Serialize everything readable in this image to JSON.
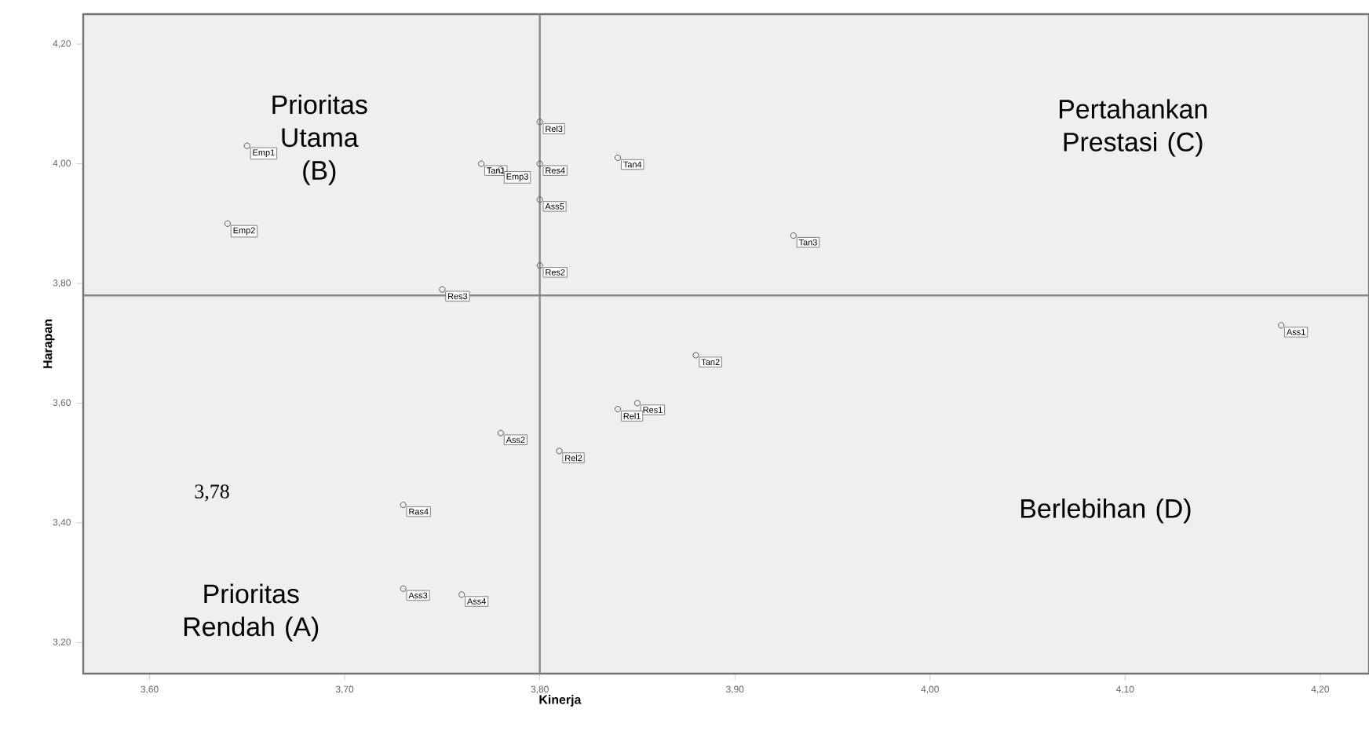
{
  "chart_data": {
    "type": "scatter",
    "xlabel": "Kinerja",
    "ylabel": "Harapan",
    "color": "#555555",
    "marker": "circle",
    "x": [
      3.8,
      3.65,
      3.77,
      3.78,
      3.8,
      3.8,
      3.84,
      3.64,
      3.8,
      3.75,
      3.93,
      4.18,
      3.88,
      3.85,
      3.84,
      3.78,
      3.81,
      3.73,
      3.73,
      3.76
    ],
    "values": [
      4.07,
      4.03,
      4.0,
      3.99,
      4.0,
      3.94,
      4.01,
      3.9,
      3.83,
      3.79,
      3.88,
      3.73,
      3.68,
      3.6,
      3.59,
      3.55,
      3.52,
      3.43,
      3.29,
      3.28
    ],
    "xlim": [
      3.566,
      4.225
    ],
    "ylim": [
      3.148,
      4.25
    ],
    "xticks": [
      {
        "value": 3.6,
        "label": "3,60"
      },
      {
        "value": 3.7,
        "label": "3,70"
      },
      {
        "value": 3.8,
        "label": "3,80"
      },
      {
        "value": 3.9,
        "label": "3,90"
      },
      {
        "value": 4.0,
        "label": "4,00"
      },
      {
        "value": 4.1,
        "label": "4,10"
      },
      {
        "value": 4.2,
        "label": "4,20"
      }
    ],
    "yticks": [
      {
        "value": 3.2,
        "label": "3,20"
      },
      {
        "value": 3.4,
        "label": "3,40"
      },
      {
        "value": 3.6,
        "label": "3,60"
      },
      {
        "value": 3.8,
        "label": "3,80"
      },
      {
        "value": 4.0,
        "label": "4,00"
      },
      {
        "value": 4.2,
        "label": "4,20"
      }
    ],
    "ref_lines": [
      {
        "axis": "x",
        "value": 3.8,
        "color": "#888888"
      },
      {
        "axis": "y",
        "value": 3.78,
        "color": "#888888"
      }
    ],
    "annotations": [
      {
        "text": "Rel3",
        "x": 3.8,
        "y": 4.07
      },
      {
        "text": "Emp1",
        "x": 3.65,
        "y": 4.03
      },
      {
        "text": "Tan1",
        "x": 3.77,
        "y": 4.0
      },
      {
        "text": "Emp3",
        "x": 3.78,
        "y": 3.99
      },
      {
        "text": "Res4",
        "x": 3.8,
        "y": 4.0
      },
      {
        "text": "Ass5",
        "x": 3.8,
        "y": 3.94
      },
      {
        "text": "Tan4",
        "x": 3.84,
        "y": 4.01
      },
      {
        "text": "Emp2",
        "x": 3.64,
        "y": 3.9
      },
      {
        "text": "Res2",
        "x": 3.8,
        "y": 3.83
      },
      {
        "text": "Res3",
        "x": 3.75,
        "y": 3.79
      },
      {
        "text": "Tan3",
        "x": 3.93,
        "y": 3.88
      },
      {
        "text": "Ass1",
        "x": 4.18,
        "y": 3.73
      },
      {
        "text": "Tan2",
        "x": 3.88,
        "y": 3.68
      },
      {
        "text": "Res1",
        "x": 3.85,
        "y": 3.6
      },
      {
        "text": "Rel1",
        "x": 3.84,
        "y": 3.59
      },
      {
        "text": "Ass2",
        "x": 3.78,
        "y": 3.55
      },
      {
        "text": "Rel2",
        "x": 3.81,
        "y": 3.52
      },
      {
        "text": "Ras4",
        "x": 3.73,
        "y": 3.43
      },
      {
        "text": "Ass3",
        "x": 3.73,
        "y": 3.29
      },
      {
        "text": "Ass4",
        "x": 3.76,
        "y": 3.28
      },
      "Prioritas Utama (B)",
      "Pertahankan Prestasi (C)",
      "3,78",
      "Prioritas Rendah (A)",
      "Berlebihan (D)"
    ]
  }
}
